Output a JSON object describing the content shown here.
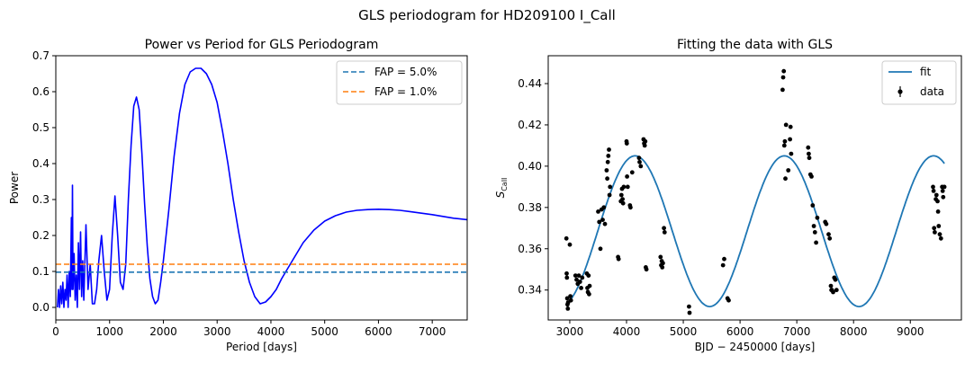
{
  "figure": {
    "suptitle": "GLS periodogram for HD209100 I_Call"
  },
  "colors": {
    "power": "#0000ff",
    "fap5": "#1f77b4",
    "fap1": "#ff7f0e",
    "fit": "#1f77b4",
    "data": "#000000"
  },
  "chart_data": [
    {
      "type": "line",
      "title": "Power vs Period for GLS Periodogram",
      "xlabel": "Period [days]",
      "ylabel": "Power",
      "xlim": [
        0,
        7650
      ],
      "ylim": [
        -0.035,
        0.7
      ],
      "xticks": [
        0,
        1000,
        2000,
        3000,
        4000,
        5000,
        6000,
        7000
      ],
      "xtick_labels": [
        "0",
        "1000",
        "2000",
        "3000",
        "4000",
        "5000",
        "6000",
        "7000"
      ],
      "yticks": [
        0.0,
        0.1,
        0.2,
        0.3,
        0.4,
        0.5,
        0.6,
        0.7
      ],
      "ytick_labels": [
        "0.0",
        "0.1",
        "0.2",
        "0.3",
        "0.4",
        "0.5",
        "0.6",
        "0.7"
      ],
      "grid": false,
      "legend": "top-right",
      "legend_entries": [
        "FAP =  5.0%",
        "FAP =  1.0%"
      ],
      "series": [
        {
          "name": "",
          "style": "solid",
          "points": [
            [
              30,
              0.0
            ],
            [
              50,
              0.05
            ],
            [
              70,
              0.0
            ],
            [
              90,
              0.06
            ],
            [
              110,
              0.01
            ],
            [
              130,
              0.07
            ],
            [
              150,
              0.0
            ],
            [
              170,
              0.05
            ],
            [
              190,
              0.02
            ],
            [
              210,
              0.09
            ],
            [
              230,
              0.0
            ],
            [
              250,
              0.1
            ],
            [
              270,
              0.03
            ],
            [
              290,
              0.25
            ],
            [
              300,
              0.05
            ],
            [
              310,
              0.34
            ],
            [
              320,
              0.05
            ],
            [
              340,
              0.15
            ],
            [
              360,
              0.02
            ],
            [
              380,
              0.09
            ],
            [
              400,
              0.0
            ],
            [
              420,
              0.18
            ],
            [
              440,
              0.05
            ],
            [
              460,
              0.21
            ],
            [
              480,
              0.03
            ],
            [
              500,
              0.13
            ],
            [
              520,
              0.02
            ],
            [
              560,
              0.23
            ],
            [
              600,
              0.05
            ],
            [
              640,
              0.12
            ],
            [
              680,
              0.01
            ],
            [
              720,
              0.01
            ],
            [
              760,
              0.05
            ],
            [
              800,
              0.13
            ],
            [
              850,
              0.2
            ],
            [
              900,
              0.1
            ],
            [
              950,
              0.02
            ],
            [
              1000,
              0.05
            ],
            [
              1050,
              0.2
            ],
            [
              1100,
              0.31
            ],
            [
              1150,
              0.2
            ],
            [
              1200,
              0.07
            ],
            [
              1250,
              0.05
            ],
            [
              1300,
              0.12
            ],
            [
              1350,
              0.3
            ],
            [
              1400,
              0.45
            ],
            [
              1450,
              0.56
            ],
            [
              1500,
              0.585
            ],
            [
              1550,
              0.55
            ],
            [
              1600,
              0.43
            ],
            [
              1650,
              0.29
            ],
            [
              1700,
              0.17
            ],
            [
              1750,
              0.08
            ],
            [
              1800,
              0.03
            ],
            [
              1850,
              0.01
            ],
            [
              1900,
              0.02
            ],
            [
              1950,
              0.07
            ],
            [
              2000,
              0.13
            ],
            [
              2100,
              0.27
            ],
            [
              2200,
              0.42
            ],
            [
              2300,
              0.54
            ],
            [
              2400,
              0.62
            ],
            [
              2500,
              0.655
            ],
            [
              2600,
              0.665
            ],
            [
              2700,
              0.665
            ],
            [
              2800,
              0.65
            ],
            [
              2900,
              0.62
            ],
            [
              3000,
              0.57
            ],
            [
              3100,
              0.49
            ],
            [
              3200,
              0.4
            ],
            [
              3300,
              0.3
            ],
            [
              3400,
              0.21
            ],
            [
              3500,
              0.13
            ],
            [
              3600,
              0.07
            ],
            [
              3700,
              0.03
            ],
            [
              3800,
              0.01
            ],
            [
              3900,
              0.015
            ],
            [
              4000,
              0.03
            ],
            [
              4100,
              0.05
            ],
            [
              4200,
              0.08
            ],
            [
              4400,
              0.13
            ],
            [
              4600,
              0.18
            ],
            [
              4800,
              0.215
            ],
            [
              5000,
              0.24
            ],
            [
              5200,
              0.255
            ],
            [
              5400,
              0.265
            ],
            [
              5600,
              0.27
            ],
            [
              5800,
              0.272
            ],
            [
              6000,
              0.273
            ],
            [
              6200,
              0.272
            ],
            [
              6400,
              0.27
            ],
            [
              6600,
              0.266
            ],
            [
              6800,
              0.262
            ],
            [
              7000,
              0.258
            ],
            [
              7200,
              0.253
            ],
            [
              7400,
              0.248
            ],
            [
              7650,
              0.244
            ]
          ]
        },
        {
          "name": "FAP =  5.0%",
          "style": "dashed",
          "y": 0.098
        },
        {
          "name": "FAP =  1.0%",
          "style": "dashed",
          "y": 0.12
        }
      ]
    },
    {
      "type": "scatter",
      "title": "Fitting the data with GLS",
      "xlabel": "BJD − 2450000 [days]",
      "ylabel_main": "S",
      "ylabel_sub": "CaII",
      "xlim": [
        2620,
        9900
      ],
      "ylim": [
        0.3255,
        0.4535
      ],
      "xticks": [
        3000,
        4000,
        5000,
        6000,
        7000,
        8000,
        9000
      ],
      "xtick_labels": [
        "3000",
        "4000",
        "5000",
        "6000",
        "7000",
        "8000",
        "9000"
      ],
      "yticks": [
        0.34,
        0.36,
        0.38,
        0.4,
        0.42,
        0.44
      ],
      "ytick_labels": [
        "0.34",
        "0.36",
        "0.38",
        "0.40",
        "0.42",
        "0.44"
      ],
      "grid": false,
      "legend": "top-right",
      "legend_entries": [
        "fit",
        "data"
      ],
      "fit": {
        "name": "fit",
        "x_start": 2940,
        "x_end": 9600,
        "mean": 0.3685,
        "amplitude": 0.0365,
        "period": 2630,
        "peak_x": 4150
      },
      "series": [
        {
          "name": "data",
          "points": [
            [
              2940,
              0.365
            ],
            [
              2945,
              0.348
            ],
            [
              2950,
              0.346
            ],
            [
              2955,
              0.336
            ],
            [
              2960,
              0.333
            ],
            [
              2965,
              0.331
            ],
            [
              2970,
              0.334
            ],
            [
              3000,
              0.362
            ],
            [
              3010,
              0.337
            ],
            [
              3020,
              0.335
            ],
            [
              3100,
              0.347
            ],
            [
              3120,
              0.345
            ],
            [
              3140,
              0.343
            ],
            [
              3160,
              0.347
            ],
            [
              3180,
              0.344
            ],
            [
              3200,
              0.341
            ],
            [
              3220,
              0.346
            ],
            [
              3300,
              0.348
            ],
            [
              3310,
              0.341
            ],
            [
              3320,
              0.339
            ],
            [
              3330,
              0.347
            ],
            [
              3340,
              0.338
            ],
            [
              3350,
              0.342
            ],
            [
              3500,
              0.378
            ],
            [
              3520,
              0.373
            ],
            [
              3540,
              0.36
            ],
            [
              3560,
              0.379
            ],
            [
              3580,
              0.374
            ],
            [
              3600,
              0.38
            ],
            [
              3620,
              0.372
            ],
            [
              3650,
              0.398
            ],
            [
              3660,
              0.394
            ],
            [
              3670,
              0.402
            ],
            [
              3680,
              0.405
            ],
            [
              3690,
              0.408
            ],
            [
              3700,
              0.386
            ],
            [
              3710,
              0.39
            ],
            [
              3850,
              0.356
            ],
            [
              3860,
              0.355
            ],
            [
              3900,
              0.383
            ],
            [
              3910,
              0.386
            ],
            [
              3920,
              0.389
            ],
            [
              3930,
              0.384
            ],
            [
              3940,
              0.382
            ],
            [
              3950,
              0.39
            ],
            [
              4000,
              0.412
            ],
            [
              4005,
              0.411
            ],
            [
              4010,
              0.395
            ],
            [
              4020,
              0.39
            ],
            [
              4060,
              0.381
            ],
            [
              4070,
              0.38
            ],
            [
              4100,
              0.397
            ],
            [
              4220,
              0.404
            ],
            [
              4230,
              0.402
            ],
            [
              4250,
              0.4
            ],
            [
              4300,
              0.413
            ],
            [
              4310,
              0.411
            ],
            [
              4320,
              0.41
            ],
            [
              4330,
              0.412
            ],
            [
              4340,
              0.351
            ],
            [
              4350,
              0.35
            ],
            [
              4600,
              0.356
            ],
            [
              4610,
              0.352
            ],
            [
              4620,
              0.354
            ],
            [
              4630,
              0.351
            ],
            [
              4640,
              0.353
            ],
            [
              4660,
              0.37
            ],
            [
              4670,
              0.368
            ],
            [
              5100,
              0.332
            ],
            [
              5110,
              0.329
            ],
            [
              5700,
              0.352
            ],
            [
              5720,
              0.355
            ],
            [
              5780,
              0.336
            ],
            [
              5800,
              0.335
            ],
            [
              6750,
              0.437
            ],
            [
              6760,
              0.443
            ],
            [
              6770,
              0.446
            ],
            [
              6780,
              0.41
            ],
            [
              6790,
              0.412
            ],
            [
              6800,
              0.394
            ],
            [
              6810,
              0.42
            ],
            [
              6850,
              0.398
            ],
            [
              6880,
              0.413
            ],
            [
              6890,
              0.419
            ],
            [
              6900,
              0.406
            ],
            [
              7200,
              0.409
            ],
            [
              7210,
              0.406
            ],
            [
              7220,
              0.404
            ],
            [
              7240,
              0.396
            ],
            [
              7260,
              0.395
            ],
            [
              7280,
              0.381
            ],
            [
              7300,
              0.371
            ],
            [
              7320,
              0.368
            ],
            [
              7340,
              0.363
            ],
            [
              7360,
              0.375
            ],
            [
              7500,
              0.373
            ],
            [
              7520,
              0.372
            ],
            [
              7560,
              0.367
            ],
            [
              7580,
              0.365
            ],
            [
              7600,
              0.342
            ],
            [
              7610,
              0.34
            ],
            [
              7620,
              0.34
            ],
            [
              7640,
              0.339
            ],
            [
              7660,
              0.346
            ],
            [
              7680,
              0.345
            ],
            [
              7700,
              0.34
            ],
            [
              9400,
              0.39
            ],
            [
              9410,
              0.388
            ],
            [
              9420,
              0.37
            ],
            [
              9430,
              0.368
            ],
            [
              9450,
              0.384
            ],
            [
              9460,
              0.386
            ],
            [
              9480,
              0.383
            ],
            [
              9490,
              0.378
            ],
            [
              9500,
              0.371
            ],
            [
              9520,
              0.367
            ],
            [
              9540,
              0.365
            ],
            [
              9560,
              0.39
            ],
            [
              9570,
              0.388
            ],
            [
              9580,
              0.385
            ],
            [
              9600,
              0.39
            ]
          ]
        }
      ]
    }
  ]
}
